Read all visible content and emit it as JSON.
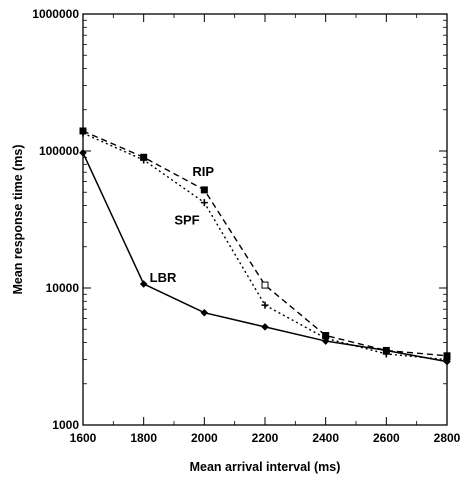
{
  "chart_data": {
    "type": "line",
    "title": "",
    "xlabel": "Mean arrival interval (ms)",
    "ylabel": "Mean response time (ms)",
    "x": [
      1600,
      1800,
      2000,
      2200,
      2400,
      2600,
      2800
    ],
    "xlim": [
      1600,
      2800
    ],
    "ylim": [
      1000,
      1000000
    ],
    "yscale": "log",
    "x_tick_labels": [
      "1600",
      "1800",
      "2000",
      "2200",
      "2400",
      "2600",
      "2800"
    ],
    "y_tick_labels": [
      "1000",
      "10000",
      "100000",
      "1000000"
    ],
    "grid": false,
    "legend": "inline labels",
    "series": [
      {
        "name": "RIP",
        "style": "dashed",
        "marker": "square",
        "values": [
          140000,
          90000,
          52000,
          10500,
          4500,
          3500,
          3200
        ]
      },
      {
        "name": "SPF",
        "style": "dotted",
        "marker": "plus",
        "values": [
          135000,
          86000,
          42000,
          7500,
          4300,
          3300,
          3000
        ]
      },
      {
        "name": "LBR",
        "style": "solid",
        "marker": "diamond",
        "values": [
          97000,
          10700,
          6600,
          5200,
          4100,
          3500,
          2900
        ]
      }
    ],
    "colors": {
      "line": "#000000"
    }
  }
}
